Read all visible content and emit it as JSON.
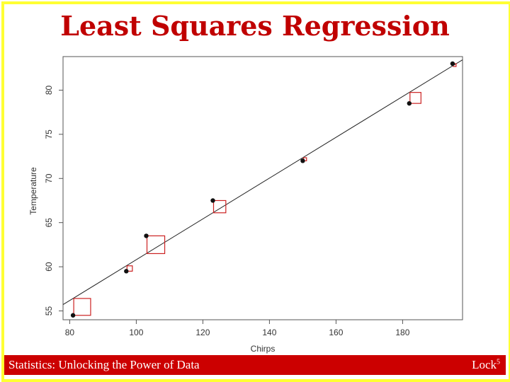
{
  "slide": {
    "title": "Least Squares Regression",
    "footer_left": "Statistics: Unlocking the Power of Data",
    "footer_right_text": "Lock",
    "footer_right_sup": "5",
    "colors": {
      "title": "#c00000",
      "footer": "#cc0000",
      "frame": "#ffff33",
      "residual_box": "#cc2222"
    }
  },
  "chart_data": {
    "type": "scatter",
    "xlabel": "Chirps",
    "ylabel": "Temperature",
    "xlim": [
      78,
      198
    ],
    "ylim": [
      54,
      83.8
    ],
    "xticks": [
      80,
      100,
      120,
      140,
      160,
      180
    ],
    "yticks": [
      55,
      60,
      65,
      70,
      75,
      80
    ],
    "grid": false,
    "points": [
      {
        "x": 81,
        "y": 54.5
      },
      {
        "x": 97,
        "y": 59.5
      },
      {
        "x": 103,
        "y": 63.5
      },
      {
        "x": 123,
        "y": 67.5
      },
      {
        "x": 150,
        "y": 72
      },
      {
        "x": 182,
        "y": 78.5
      },
      {
        "x": 195,
        "y": 83
      }
    ],
    "regression_line": {
      "intercept": 37.7,
      "slope": 0.231
    },
    "residual_squares": true
  }
}
